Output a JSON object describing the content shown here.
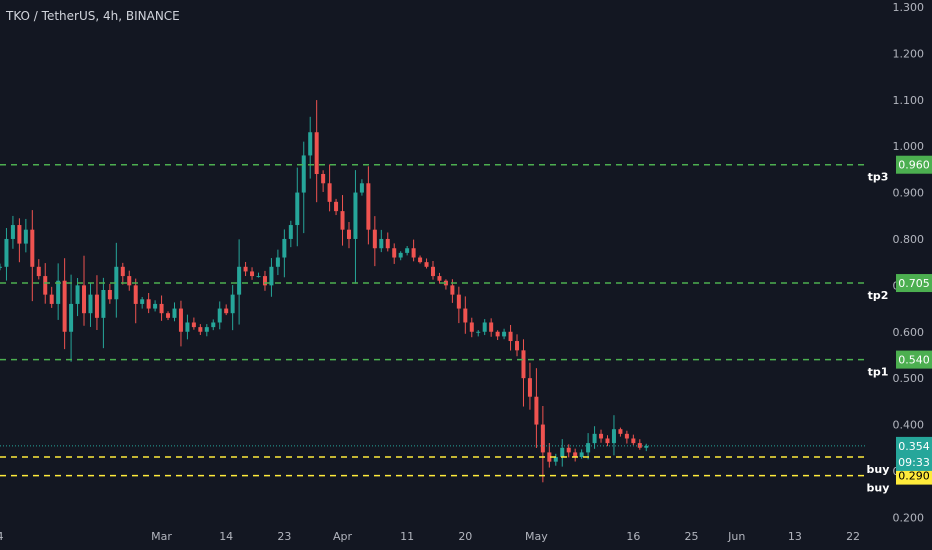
{
  "header": {
    "title": "TKO / TetherUS, 4h, BINANCE"
  },
  "colors": {
    "background": "#131722",
    "up": "#26a69a",
    "down": "#ef5350",
    "target_line": "#4caf50",
    "buy_line": "#ffeb3b",
    "axis_text": "#b2b5be",
    "tag_green": "#4caf50",
    "tag_yellow": "#ffeb3b",
    "tag_price": "#26a69a"
  },
  "chart_data": {
    "type": "candlestick",
    "y_ticks": [
      "1.300",
      "1.200",
      "1.100",
      "1.000",
      "0.900",
      "0.800",
      "0.700",
      "0.600",
      "0.500",
      "0.400",
      "0.300",
      "0.200"
    ],
    "y_tick_values": [
      1.3,
      1.2,
      1.1,
      1.0,
      0.9,
      0.8,
      0.7,
      0.6,
      0.5,
      0.4,
      0.3,
      0.2
    ],
    "ylim": [
      0.19,
      1.315
    ],
    "x_ticks": [
      {
        "label": "4",
        "value": 0
      },
      {
        "label": "Mar",
        "value": 25
      },
      {
        "label": "14",
        "value": 35
      },
      {
        "label": "23",
        "value": 44
      },
      {
        "label": "Apr",
        "value": 53
      },
      {
        "label": "11",
        "value": 63
      },
      {
        "label": "20",
        "value": 72
      },
      {
        "label": "May",
        "value": 83
      },
      {
        "label": "16",
        "value": 98
      },
      {
        "label": "25",
        "value": 107
      },
      {
        "label": "Jun",
        "value": 114
      },
      {
        "label": "13",
        "value": 123
      },
      {
        "label": "22",
        "value": 132
      }
    ],
    "xlim": [
      0,
      134
    ],
    "current_price": 0.354,
    "countdown": "09:33",
    "levels": [
      {
        "name": "tp3",
        "value": 0.96,
        "tag": "0.960",
        "kind": "target"
      },
      {
        "name": "tp2",
        "value": 0.705,
        "tag": "0.705",
        "kind": "target"
      },
      {
        "name": "tp1",
        "value": 0.54,
        "tag": "0.540",
        "kind": "target"
      },
      {
        "name": "buy",
        "value": 0.33,
        "tag": "0.330",
        "kind": "buy"
      },
      {
        "name": "buy",
        "value": 0.29,
        "tag": "0.290",
        "kind": "buy"
      }
    ],
    "price_path": [
      [
        0,
        0.74
      ],
      [
        1,
        0.8
      ],
      [
        2,
        0.83
      ],
      [
        3,
        0.79
      ],
      [
        4,
        0.82
      ],
      [
        5,
        0.74
      ],
      [
        6,
        0.72
      ],
      [
        7,
        0.68
      ],
      [
        8,
        0.66
      ],
      [
        9,
        0.71
      ],
      [
        10,
        0.6
      ],
      [
        11,
        0.66
      ],
      [
        12,
        0.7
      ],
      [
        13,
        0.64
      ],
      [
        14,
        0.68
      ],
      [
        15,
        0.63
      ],
      [
        16,
        0.69
      ],
      [
        17,
        0.67
      ],
      [
        18,
        0.74
      ],
      [
        19,
        0.72
      ],
      [
        20,
        0.7
      ],
      [
        21,
        0.66
      ],
      [
        22,
        0.67
      ],
      [
        23,
        0.65
      ],
      [
        24,
        0.66
      ],
      [
        25,
        0.64
      ],
      [
        26,
        0.63
      ],
      [
        27,
        0.65
      ],
      [
        28,
        0.6
      ],
      [
        29,
        0.62
      ],
      [
        30,
        0.61
      ],
      [
        31,
        0.6
      ],
      [
        32,
        0.61
      ],
      [
        33,
        0.62
      ],
      [
        34,
        0.65
      ],
      [
        35,
        0.64
      ],
      [
        36,
        0.68
      ],
      [
        37,
        0.74
      ],
      [
        38,
        0.73
      ],
      [
        39,
        0.72
      ],
      [
        40,
        0.72
      ],
      [
        41,
        0.7
      ],
      [
        42,
        0.74
      ],
      [
        43,
        0.76
      ],
      [
        44,
        0.8
      ],
      [
        45,
        0.83
      ],
      [
        46,
        0.9
      ],
      [
        47,
        0.98
      ],
      [
        48,
        1.03
      ],
      [
        49,
        0.94
      ],
      [
        50,
        0.92
      ],
      [
        51,
        0.88
      ],
      [
        52,
        0.86
      ],
      [
        53,
        0.82
      ],
      [
        54,
        0.8
      ],
      [
        55,
        0.9
      ],
      [
        56,
        0.92
      ],
      [
        57,
        0.82
      ],
      [
        58,
        0.78
      ],
      [
        59,
        0.8
      ],
      [
        60,
        0.78
      ],
      [
        61,
        0.76
      ],
      [
        62,
        0.77
      ],
      [
        63,
        0.78
      ],
      [
        64,
        0.76
      ],
      [
        65,
        0.75
      ],
      [
        66,
        0.74
      ],
      [
        67,
        0.72
      ],
      [
        68,
        0.71
      ],
      [
        69,
        0.7
      ],
      [
        70,
        0.68
      ],
      [
        71,
        0.65
      ],
      [
        72,
        0.62
      ],
      [
        73,
        0.6
      ],
      [
        74,
        0.6
      ],
      [
        75,
        0.62
      ],
      [
        76,
        0.6
      ],
      [
        77,
        0.59
      ],
      [
        78,
        0.6
      ],
      [
        79,
        0.58
      ],
      [
        80,
        0.56
      ],
      [
        81,
        0.5
      ],
      [
        82,
        0.46
      ],
      [
        83,
        0.4
      ],
      [
        84,
        0.34
      ],
      [
        85,
        0.32
      ],
      [
        86,
        0.33
      ],
      [
        87,
        0.35
      ],
      [
        88,
        0.34
      ],
      [
        89,
        0.33
      ],
      [
        90,
        0.34
      ],
      [
        91,
        0.36
      ],
      [
        92,
        0.38
      ],
      [
        93,
        0.37
      ],
      [
        94,
        0.36
      ],
      [
        95,
        0.39
      ],
      [
        96,
        0.38
      ],
      [
        97,
        0.37
      ],
      [
        98,
        0.36
      ],
      [
        99,
        0.35
      ],
      [
        100,
        0.354
      ]
    ]
  }
}
